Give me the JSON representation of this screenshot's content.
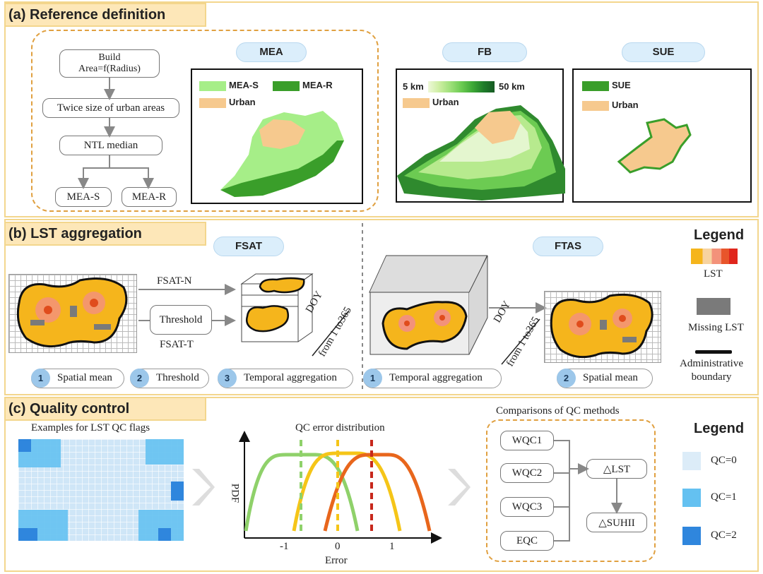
{
  "panel_a": {
    "title": "(a) Reference definition",
    "flow": {
      "build": "Build\nArea=f(Radius)",
      "twice": "Twice size of urban areas",
      "ntl": "NTL median",
      "meas": "MEA-S",
      "mear": "MEA-R"
    },
    "mea": {
      "pill": "MEA",
      "legend_s": "MEA-S",
      "legend_r": "MEA-R",
      "legend_urban": "Urban"
    },
    "fb": {
      "pill": "FB",
      "scale_min": "5 km",
      "scale_max": "50 km",
      "legend_urban": "Urban"
    },
    "sue": {
      "pill": "SUE",
      "legend_sue": "SUE",
      "legend_urban": "Urban"
    }
  },
  "panel_b": {
    "title": "(b) LST aggregation",
    "fsat": {
      "pill": "FSAT",
      "arrow_n": "FSAT-N",
      "threshold": "Threshold",
      "arrow_t": "FSAT-T",
      "doy": "DOY",
      "doy_range": "from 1 to365"
    },
    "ftas": {
      "pill": "FTAS",
      "doy": "DOY",
      "doy_range": "from 1 to365"
    },
    "steps_fsat": [
      {
        "num": "1",
        "label": "Spatial mean"
      },
      {
        "num": "2",
        "label": "Threshold"
      },
      {
        "num": "3",
        "label": "Temporal aggregation"
      }
    ],
    "steps_ftas": [
      {
        "num": "1",
        "label": "Temporal aggregation"
      },
      {
        "num": "2",
        "label": "Spatial mean"
      }
    ],
    "legend": {
      "title": "Legend",
      "lst": "LST",
      "missing": "Missing LST",
      "admin": "Administrative\nboundary"
    }
  },
  "panel_c": {
    "title": "(c) Quality control",
    "qc_flags_title": "Examples for LST QC flags",
    "dist_title": "QC error distribution",
    "dist_ylabel": "PDF",
    "dist_xlabel": "Error",
    "dist_ticks": [
      "-1",
      "0",
      "1"
    ],
    "compare_title": "Comparisons of  QC methods",
    "methods": [
      "WQC1",
      "WQC2",
      "WQC3",
      "EQC"
    ],
    "delta_lst": "△LST",
    "delta_suhii": "△SUHII",
    "legend": {
      "title": "Legend",
      "qc0": "QC=0",
      "qc1": "QC=1",
      "qc2": "QC=2"
    }
  },
  "colors": {
    "qc0": "#dcecf8",
    "qc1": "#64c1f1",
    "qc2": "#2f86dd",
    "panel_border": "#f3d68d",
    "title_bg": "#fde7b8",
    "dashed_orange": "#e0a040"
  }
}
